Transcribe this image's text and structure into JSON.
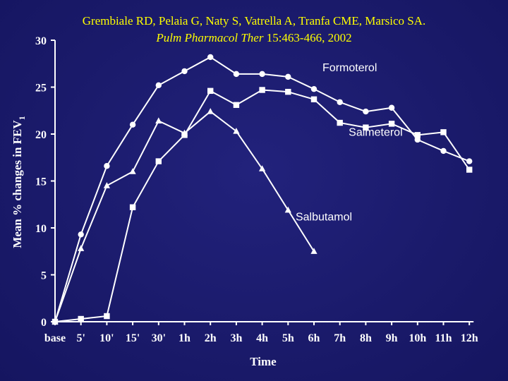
{
  "citation": {
    "authors": "Grembiale RD, Pelaia G, Naty S, Vatrella A, Tranfa CME, Marsico SA.",
    "journal": "Pulm Pharmacol Ther",
    "details": " 15:463-466, 2002"
  },
  "chart_data": {
    "type": "line",
    "title": "",
    "xlabel": "Time",
    "ylabel": "Mean % changes in FEV",
    "ylabel_subscript": "1",
    "ylim": [
      0,
      30
    ],
    "yticks": [
      0,
      5,
      10,
      15,
      20,
      25,
      30
    ],
    "categories": [
      "base",
      "5'",
      "10'",
      "15'",
      "30'",
      "1h",
      "2h",
      "3h",
      "4h",
      "5h",
      "6h",
      "7h",
      "8h",
      "9h",
      "10h",
      "11h",
      "12h"
    ],
    "grid": false,
    "colors": {
      "background": "#1b1b6e",
      "axes": "#ffffff",
      "lines": "#ffffff",
      "citation": "#ffff00"
    },
    "series": [
      {
        "name": "Formoterol",
        "marker": "circle",
        "values": [
          0,
          9.3,
          16.6,
          21,
          25.2,
          26.7,
          28.2,
          26.4,
          26.4,
          26.1,
          24.8,
          23.4,
          22.4,
          22.8,
          19.4,
          18.2,
          17.1
        ]
      },
      {
        "name": "Salmeterol",
        "marker": "square",
        "values": [
          0,
          0.3,
          0.6,
          12.2,
          17.1,
          19.9,
          24.6,
          23.1,
          24.7,
          24.5,
          23.7,
          21.2,
          20.7,
          21.1,
          19.9,
          20.2,
          16.2
        ]
      },
      {
        "name": "Salbutamol",
        "marker": "triangle",
        "values": [
          0,
          7.8,
          14.5,
          16,
          21.4,
          20.1,
          22.4,
          20.3,
          16.3,
          11.9,
          7.5,
          null,
          null,
          null,
          null,
          null,
          null
        ]
      }
    ]
  }
}
